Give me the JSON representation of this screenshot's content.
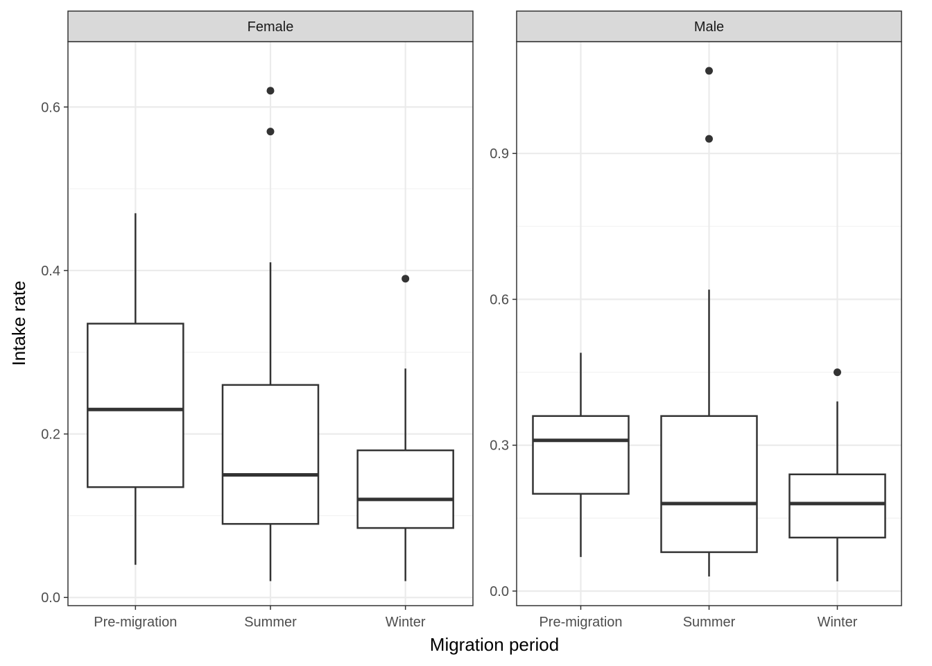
{
  "chart_data": {
    "type": "boxplot",
    "xlabel": "Migration period",
    "ylabel": "Intake rate",
    "categories": [
      "Pre-migration",
      "Summer",
      "Winter"
    ],
    "grid": true,
    "panels": [
      {
        "label": "Female",
        "ylim": [
          -0.01,
          0.68
        ],
        "yticks": [
          0.0,
          0.2,
          0.4,
          0.6
        ],
        "ytick_labels": [
          "0.0",
          "0.2",
          "0.4",
          "0.6"
        ],
        "boxes": [
          {
            "category": "Pre-migration",
            "lower_whisker": 0.04,
            "q1": 0.135,
            "median": 0.23,
            "q3": 0.335,
            "upper_whisker": 0.47,
            "outliers": []
          },
          {
            "category": "Summer",
            "lower_whisker": 0.02,
            "q1": 0.09,
            "median": 0.15,
            "q3": 0.26,
            "upper_whisker": 0.41,
            "outliers": [
              0.57,
              0.62
            ]
          },
          {
            "category": "Winter",
            "lower_whisker": 0.02,
            "q1": 0.085,
            "median": 0.12,
            "q3": 0.18,
            "upper_whisker": 0.28,
            "outliers": [
              0.39
            ]
          }
        ]
      },
      {
        "label": "Male",
        "ylim": [
          -0.03,
          1.13
        ],
        "yticks": [
          0.0,
          0.3,
          0.6,
          0.9
        ],
        "ytick_labels": [
          "0.0",
          "0.3",
          "0.6",
          "0.9"
        ],
        "boxes": [
          {
            "category": "Pre-migration",
            "lower_whisker": 0.07,
            "q1": 0.2,
            "median": 0.31,
            "q3": 0.36,
            "upper_whisker": 0.49,
            "outliers": []
          },
          {
            "category": "Summer",
            "lower_whisker": 0.03,
            "q1": 0.08,
            "median": 0.18,
            "q3": 0.36,
            "upper_whisker": 0.62,
            "outliers": [
              0.93,
              1.07
            ]
          },
          {
            "category": "Winter",
            "lower_whisker": 0.02,
            "q1": 0.11,
            "median": 0.18,
            "q3": 0.24,
            "upper_whisker": 0.39,
            "outliers": [
              0.45
            ]
          }
        ]
      }
    ]
  },
  "colors": {
    "box_stroke": "#333333",
    "grid_major": "#ebebeb",
    "grid_minor": "#f2f2f2",
    "strip_fill": "#d9d9d9",
    "panel_border": "#333333"
  }
}
